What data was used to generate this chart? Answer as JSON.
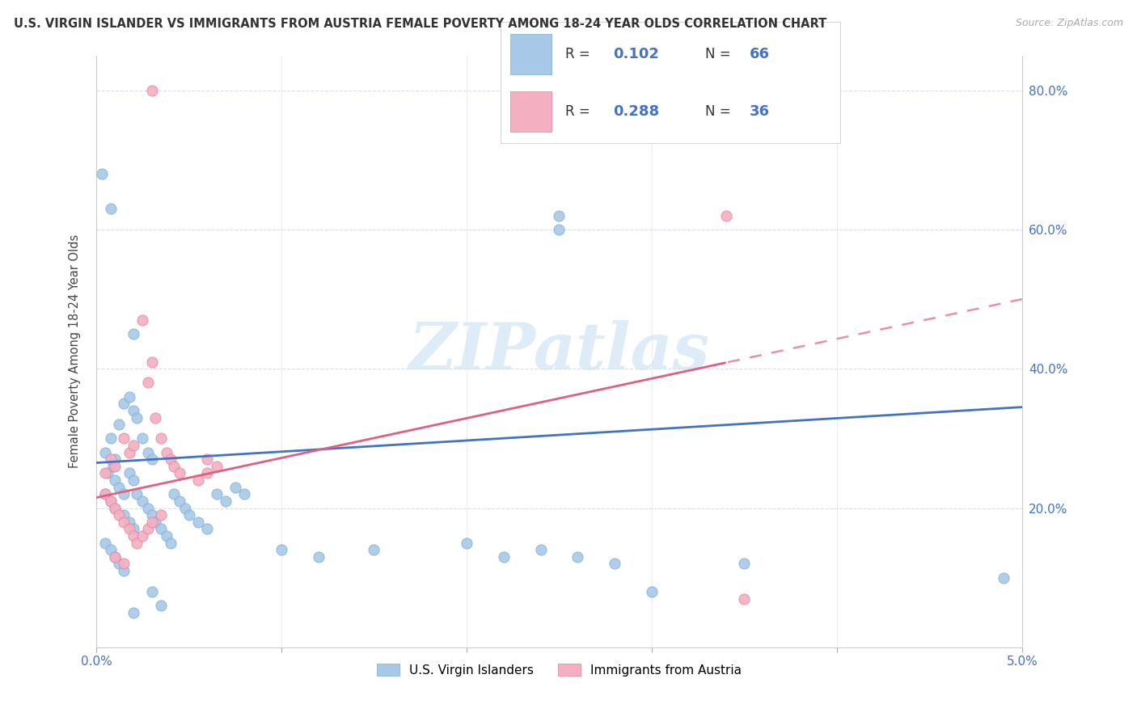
{
  "title": "U.S. VIRGIN ISLANDER VS IMMIGRANTS FROM AUSTRIA FEMALE POVERTY AMONG 18-24 YEAR OLDS CORRELATION CHART",
  "source": "Source: ZipAtlas.com",
  "ylabel": "Female Poverty Among 18-24 Year Olds",
  "legend_label_blue": "U.S. Virgin Islanders",
  "legend_label_pink": "Immigrants from Austria",
  "blue_color": "#a8c8e8",
  "blue_edge_color": "#7aaed0",
  "pink_color": "#f4b0c0",
  "pink_edge_color": "#e080a0",
  "blue_line_color": "#4472c4",
  "pink_line_color": "#e06080",
  "watermark_text": "ZIPatlas",
  "watermark_color": "#d0e4f4",
  "xlim": [
    0.0,
    0.05
  ],
  "ylim": [
    0.0,
    0.85
  ],
  "blue_pts": [
    [
      0.0005,
      0.28
    ],
    [
      0.001,
      0.27
    ],
    [
      0.0008,
      0.3
    ],
    [
      0.0012,
      0.32
    ],
    [
      0.0015,
      0.35
    ],
    [
      0.0018,
      0.36
    ],
    [
      0.0006,
      0.25
    ],
    [
      0.0009,
      0.26
    ],
    [
      0.002,
      0.34
    ],
    [
      0.0022,
      0.33
    ],
    [
      0.0025,
      0.3
    ],
    [
      0.0028,
      0.28
    ],
    [
      0.003,
      0.27
    ],
    [
      0.001,
      0.24
    ],
    [
      0.0012,
      0.23
    ],
    [
      0.0015,
      0.22
    ],
    [
      0.0018,
      0.25
    ],
    [
      0.002,
      0.24
    ],
    [
      0.0005,
      0.22
    ],
    [
      0.0008,
      0.21
    ],
    [
      0.001,
      0.2
    ],
    [
      0.0015,
      0.19
    ],
    [
      0.0018,
      0.18
    ],
    [
      0.002,
      0.17
    ],
    [
      0.0022,
      0.22
    ],
    [
      0.0025,
      0.21
    ],
    [
      0.0028,
      0.2
    ],
    [
      0.003,
      0.19
    ],
    [
      0.0032,
      0.18
    ],
    [
      0.0035,
      0.17
    ],
    [
      0.0038,
      0.16
    ],
    [
      0.004,
      0.15
    ],
    [
      0.0042,
      0.22
    ],
    [
      0.0045,
      0.21
    ],
    [
      0.0048,
      0.2
    ],
    [
      0.005,
      0.19
    ],
    [
      0.0055,
      0.18
    ],
    [
      0.006,
      0.17
    ],
    [
      0.0065,
      0.22
    ],
    [
      0.007,
      0.21
    ],
    [
      0.0075,
      0.23
    ],
    [
      0.008,
      0.22
    ],
    [
      0.0003,
      0.68
    ],
    [
      0.0008,
      0.63
    ],
    [
      0.002,
      0.45
    ],
    [
      0.025,
      0.6
    ],
    [
      0.025,
      0.62
    ],
    [
      0.003,
      0.08
    ],
    [
      0.0035,
      0.06
    ],
    [
      0.002,
      0.05
    ],
    [
      0.01,
      0.14
    ],
    [
      0.012,
      0.13
    ],
    [
      0.015,
      0.14
    ],
    [
      0.02,
      0.15
    ],
    [
      0.022,
      0.13
    ],
    [
      0.024,
      0.14
    ],
    [
      0.026,
      0.13
    ],
    [
      0.028,
      0.12
    ],
    [
      0.035,
      0.12
    ],
    [
      0.049,
      0.1
    ],
    [
      0.03,
      0.08
    ],
    [
      0.0005,
      0.15
    ],
    [
      0.0008,
      0.14
    ],
    [
      0.001,
      0.13
    ],
    [
      0.0012,
      0.12
    ],
    [
      0.0015,
      0.11
    ]
  ],
  "pink_pts": [
    [
      0.003,
      0.8
    ],
    [
      0.0005,
      0.25
    ],
    [
      0.0008,
      0.27
    ],
    [
      0.001,
      0.26
    ],
    [
      0.0015,
      0.3
    ],
    [
      0.0018,
      0.28
    ],
    [
      0.002,
      0.29
    ],
    [
      0.0025,
      0.47
    ],
    [
      0.0028,
      0.38
    ],
    [
      0.003,
      0.41
    ],
    [
      0.0032,
      0.33
    ],
    [
      0.0035,
      0.3
    ],
    [
      0.0038,
      0.28
    ],
    [
      0.004,
      0.27
    ],
    [
      0.0042,
      0.26
    ],
    [
      0.0045,
      0.25
    ],
    [
      0.0005,
      0.22
    ],
    [
      0.0008,
      0.21
    ],
    [
      0.001,
      0.2
    ],
    [
      0.0012,
      0.19
    ],
    [
      0.0015,
      0.18
    ],
    [
      0.0018,
      0.17
    ],
    [
      0.002,
      0.16
    ],
    [
      0.0022,
      0.15
    ],
    [
      0.0025,
      0.16
    ],
    [
      0.0028,
      0.17
    ],
    [
      0.003,
      0.18
    ],
    [
      0.0035,
      0.19
    ],
    [
      0.006,
      0.27
    ],
    [
      0.0065,
      0.26
    ],
    [
      0.034,
      0.62
    ],
    [
      0.035,
      0.07
    ],
    [
      0.001,
      0.13
    ],
    [
      0.0015,
      0.12
    ],
    [
      0.006,
      0.25
    ],
    [
      0.0055,
      0.24
    ]
  ]
}
